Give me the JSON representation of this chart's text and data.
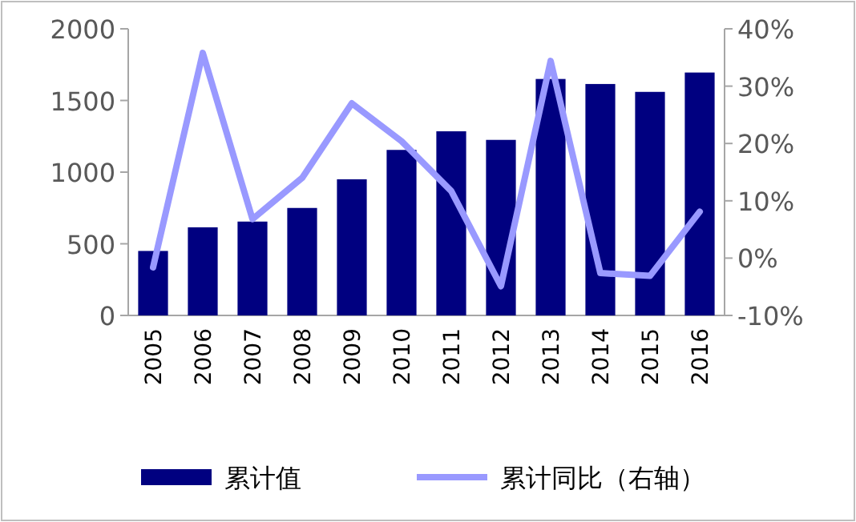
{
  "chart_data": {
    "type": "bar",
    "categories": [
      "2005",
      "2006",
      "2007",
      "2008",
      "2009",
      "2010",
      "2011",
      "2012",
      "2013",
      "2014",
      "2015",
      "2016"
    ],
    "series": [
      {
        "name": "累计值",
        "color": "#000080",
        "values": [
          450,
          615,
          655,
          750,
          950,
          1155,
          1285,
          1225,
          1650,
          1615,
          1560,
          1695
        ]
      },
      {
        "name": "累计同比（右轴）",
        "type": "line",
        "axis": "y2",
        "color": "#9999ff",
        "values": [
          -1.6,
          35.8,
          6.8,
          14.0,
          27.0,
          20.4,
          11.7,
          -4.9,
          34.4,
          -2.6,
          -3.1,
          8.1
        ]
      }
    ],
    "ylim": [
      0,
      2000
    ],
    "yticks": [
      0,
      500,
      1000,
      1500,
      2000
    ],
    "y2lim": [
      -10,
      40
    ],
    "y2ticks": [
      {
        "value": -10,
        "label": "-10%"
      },
      {
        "value": 0,
        "label": "0%"
      },
      {
        "value": 10,
        "label": "10%"
      },
      {
        "value": 20,
        "label": "20%"
      },
      {
        "value": 30,
        "label": "30%"
      },
      {
        "value": 40,
        "label": "40%"
      }
    ],
    "legend": "bottom",
    "grid": false
  }
}
